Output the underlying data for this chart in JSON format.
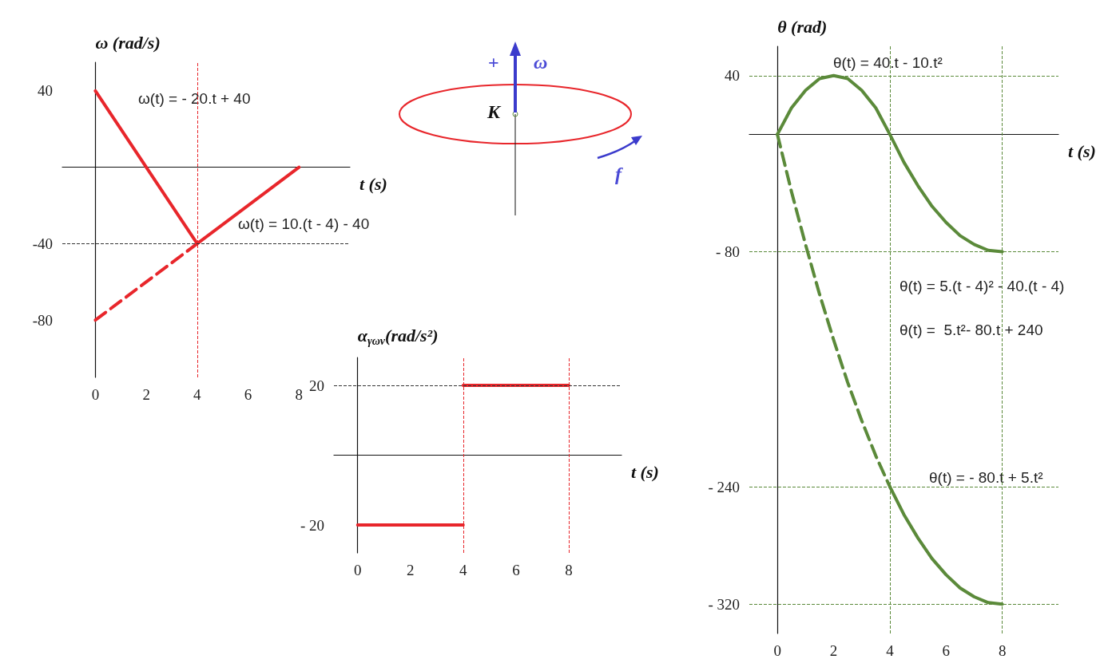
{
  "chart_data": [
    {
      "type": "line",
      "ylabel": "ω (rad/s)",
      "xlabel": "t (s)",
      "xlim": [
        -1.3,
        10
      ],
      "ylim": [
        -110,
        55
      ],
      "xticks": [
        0,
        2,
        4,
        6,
        8
      ],
      "yticks": [
        40,
        -40,
        -80
      ],
      "grid": false,
      "marker": "none",
      "series": [
        {
          "color": "#e8262b",
          "x": [
            0,
            4,
            8
          ],
          "values": [
            40,
            -40,
            0
          ],
          "line_style": "solid"
        },
        {
          "color": "#e8262b",
          "x": [
            0,
            4
          ],
          "values": [
            -80,
            -40
          ],
          "line_style": "dashed"
        }
      ],
      "ref_lines": [
        {
          "axis": "x",
          "value": 4,
          "color": "#e8262b",
          "line_style": "dashed"
        },
        {
          "axis": "y",
          "value": -40,
          "color": "#333333",
          "line_style": "dashed"
        }
      ],
      "annotations": [
        "ω(t) = - 20.t + 40",
        "ω(t) = 10.(t - 4) - 40"
      ]
    },
    {
      "type": "other",
      "annotations": [
        "+",
        "ω",
        "K",
        "f"
      ]
    },
    {
      "type": "line",
      "ylabel": "α$_{γων}$(rad/s²)",
      "xlabel": "t (s)",
      "xlim": [
        -0.9,
        10
      ],
      "ylim": [
        -28,
        28
      ],
      "xticks": [
        0,
        2,
        4,
        6,
        8
      ],
      "yticks": [
        20,
        {
          "value": -20,
          "label": "- 20"
        }
      ],
      "grid": false,
      "marker": "none",
      "series": [
        {
          "color": "#e8262b",
          "x": [
            0,
            4
          ],
          "values": [
            -20,
            -20
          ],
          "line_style": "solid"
        },
        {
          "color": "#e8262b",
          "x": [
            4,
            8
          ],
          "values": [
            20,
            20
          ],
          "line_style": "solid"
        }
      ],
      "ref_lines": [
        {
          "axis": "x",
          "value": 4,
          "color": "#e8262b",
          "line_style": "dashed"
        },
        {
          "axis": "x",
          "value": 8,
          "color": "#e8262b",
          "line_style": "dashed"
        },
        {
          "axis": "y",
          "value": 20,
          "color": "#333333",
          "line_style": "dashed"
        }
      ]
    },
    {
      "type": "line",
      "ylabel": "θ (rad)",
      "xlabel": "t (s)",
      "xlim": [
        -1,
        10
      ],
      "ylim": [
        -340,
        60
      ],
      "xticks": [
        0,
        2,
        4,
        6,
        8
      ],
      "yticks": [
        40,
        {
          "value": -80,
          "label": "- 80"
        },
        {
          "value": -240,
          "label": "- 240"
        },
        {
          "value": -320,
          "label": "- 320"
        }
      ],
      "grid": false,
      "marker": "none",
      "series": [
        {
          "color": "#5b8a3a",
          "x": [
            0,
            0.5,
            1,
            1.5,
            2,
            2.5,
            3,
            3.5,
            4,
            4.5,
            5,
            5.5,
            6,
            6.5,
            7,
            7.5,
            8
          ],
          "values": [
            0,
            18,
            30,
            38,
            40,
            38,
            30,
            18,
            0,
            -19,
            -35,
            -49,
            -60,
            -69,
            -75,
            -79,
            -80
          ],
          "line_style": "solid"
        },
        {
          "color": "#5b8a3a",
          "x": [
            0,
            0.5,
            1,
            1.5,
            2,
            2.5,
            3,
            3.5,
            4
          ],
          "values": [
            0,
            -39,
            -75,
            -109,
            -140,
            -169,
            -195,
            -219,
            -240
          ],
          "line_style": "dashed"
        },
        {
          "color": "#5b8a3a",
          "x": [
            4,
            4.5,
            5,
            5.5,
            6,
            6.5,
            7,
            7.5,
            8
          ],
          "values": [
            -240,
            -259,
            -275,
            -289,
            -300,
            -309,
            -315,
            -319,
            -320
          ],
          "line_style": "solid"
        }
      ],
      "ref_lines": [
        {
          "axis": "y",
          "value": 40,
          "color": "#5b8a3a",
          "line_style": "dashed"
        },
        {
          "axis": "y",
          "value": -80,
          "color": "#5b8a3a",
          "line_style": "dashed"
        },
        {
          "axis": "y",
          "value": -240,
          "color": "#5b8a3a",
          "line_style": "dashed"
        },
        {
          "axis": "y",
          "value": -320,
          "color": "#5b8a3a",
          "line_style": "dashed"
        },
        {
          "axis": "x",
          "value": 4,
          "color": "#5b8a3a",
          "line_style": "dashed"
        },
        {
          "axis": "x",
          "value": 8,
          "color": "#5b8a3a",
          "line_style": "dashed"
        }
      ],
      "annotations": [
        "θ(t) = 40.t - 10.t²",
        "θ(t) = 5.(t - 4)² - 40.(t - 4)",
        "θ(t) =  5.t²- 80.t + 240",
        "θ(t) = - 80.t + 5.t²"
      ]
    }
  ]
}
